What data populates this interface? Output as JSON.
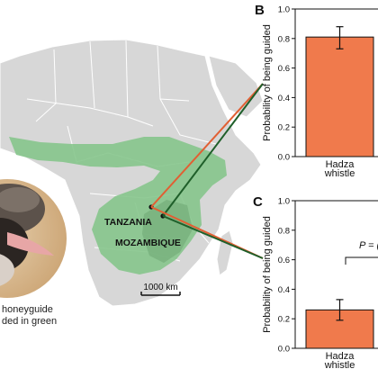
{
  "figure": {
    "map": {
      "country_labels": [
        "TANZANIA",
        "MOZAMBIQUE"
      ],
      "scale_bar_label": "1000 km",
      "caption_lines": [
        "honeyguide",
        "ded in green"
      ],
      "colors": {
        "land": "#d7d7d7",
        "border": "#ffffff",
        "range": "#86c58c",
        "range_dark": "#6fa974",
        "orange_line": "#e15f33",
        "green_line": "#1f5f2a"
      }
    },
    "panel_b": {
      "label": "B"
    },
    "panel_c": {
      "label": "C",
      "annotation": "P = ("
    },
    "bar_color": "#f07a4c"
  },
  "chart_data": [
    {
      "type": "bar",
      "panel": "B",
      "categories": [
        "Hadza whistle"
      ],
      "tick_label_lines": [
        "Hadza",
        "whistle"
      ],
      "values": [
        0.81
      ],
      "error": [
        0.73,
        0.88
      ],
      "ylabel": "Probability of being guided",
      "ylim": [
        0,
        1
      ],
      "yticks": [
        "0.0",
        "0.2",
        "0.4",
        "0.6",
        "0.8",
        "1.0"
      ]
    },
    {
      "type": "bar",
      "panel": "C",
      "categories": [
        "Hadza whistle"
      ],
      "tick_label_lines": [
        "Hadza",
        "whistle"
      ],
      "values": [
        0.26
      ],
      "error": [
        0.19,
        0.33
      ],
      "ylabel": "Probability of being guided",
      "ylim": [
        0,
        1
      ],
      "yticks": [
        "0.0",
        "0.2",
        "0.4",
        "0.6",
        "0.8",
        "1.0"
      ]
    }
  ]
}
